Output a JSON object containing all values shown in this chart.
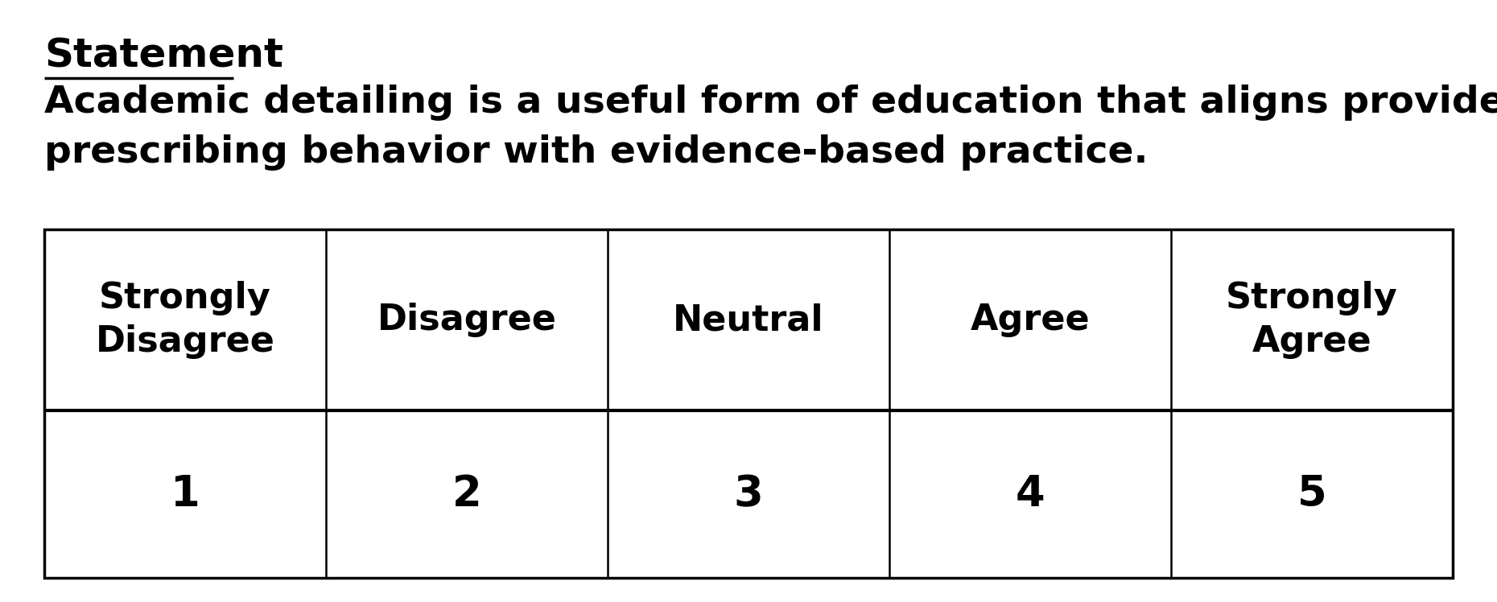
{
  "title_label": "Statement",
  "statement_line1": "Academic detailing is a useful form of education that aligns providers'",
  "statement_line2": "prescribing behavior with evidence-based practice.",
  "col_headers": [
    "Strongly\nDisagree",
    "Disagree",
    "Neutral",
    "Agree",
    "Strongly\nAgree"
  ],
  "col_values": [
    "1",
    "2",
    "3",
    "4",
    "5"
  ],
  "background_color": "#ffffff",
  "text_color": "#000000",
  "table_edge_color": "#000000",
  "title_fontsize": 36,
  "statement_fontsize": 34,
  "header_fontsize": 32,
  "value_fontsize": 38,
  "fig_width": 18.6,
  "fig_height": 7.48,
  "dpi": 100
}
